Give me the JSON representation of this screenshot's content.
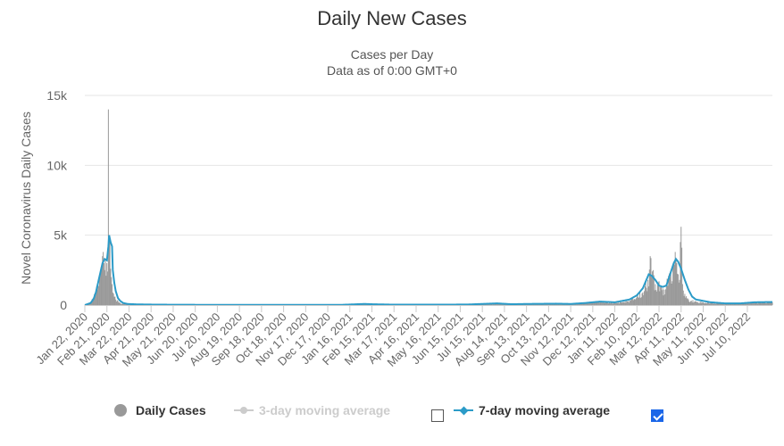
{
  "chart_data": {
    "type": "bar",
    "title": "Daily New Cases",
    "subtitle_lines": [
      "Cases per Day",
      "Data as of 0:00 GMT+0"
    ],
    "ylabel": "Novel Coronavirus Daily Cases",
    "ylim": [
      0,
      15000
    ],
    "y_ticks": [
      0,
      5000,
      10000,
      15000
    ],
    "y_tick_labels": [
      "0",
      "5k",
      "10k",
      "15k"
    ],
    "grid": true,
    "x_tick_labels": [
      "Jan 22, 2020",
      "Feb 21, 2020",
      "Mar 22, 2020",
      "Apr 21, 2020",
      "May 21, 2020",
      "Jun 20, 2020",
      "Jul 20, 2020",
      "Aug 19, 2020",
      "Sep 18, 2020",
      "Oct 18, 2020",
      "Nov 17, 2020",
      "Dec 17, 2020",
      "Jan 16, 2021",
      "Feb 15, 2021",
      "Mar 17, 2021",
      "Apr 16, 2021",
      "May 16, 2021",
      "Jun 15, 2021",
      "Jul 15, 2021",
      "Aug 14, 2021",
      "Sep 13, 2021",
      "Oct 13, 2021",
      "Nov 12, 2021",
      "Dec 12, 2021",
      "Jan 11, 2022",
      "Feb 10, 2022",
      "Mar 12, 2022",
      "Apr 11, 2022",
      "May 11, 2022",
      "Jun 10, 2022",
      "Jul 10, 2022"
    ],
    "total_days": 935,
    "series": [
      {
        "name": "Daily Cases",
        "kind": "bar",
        "color": "#999999",
        "points": [
          [
            0,
            0
          ],
          [
            8,
            200
          ],
          [
            12,
            500
          ],
          [
            15,
            900
          ],
          [
            18,
            1500
          ],
          [
            20,
            2000
          ],
          [
            22,
            2700
          ],
          [
            24,
            3500
          ],
          [
            25,
            3800
          ],
          [
            26,
            3000
          ],
          [
            27,
            2500
          ],
          [
            28,
            3200
          ],
          [
            29,
            2100
          ],
          [
            30,
            3000
          ],
          [
            31,
            2400
          ],
          [
            32,
            14000
          ],
          [
            33,
            5000
          ],
          [
            34,
            4600
          ],
          [
            35,
            2600
          ],
          [
            36,
            2000
          ],
          [
            37,
            1500
          ],
          [
            38,
            900
          ],
          [
            40,
            600
          ],
          [
            42,
            400
          ],
          [
            45,
            300
          ],
          [
            48,
            150
          ],
          [
            52,
            100
          ],
          [
            58,
            50
          ],
          [
            70,
            30
          ],
          [
            100,
            20
          ],
          [
            150,
            15
          ],
          [
            200,
            15
          ],
          [
            250,
            10
          ],
          [
            300,
            10
          ],
          [
            350,
            20
          ],
          [
            370,
            40
          ],
          [
            380,
            60
          ],
          [
            390,
            30
          ],
          [
            420,
            20
          ],
          [
            480,
            30
          ],
          [
            520,
            30
          ],
          [
            540,
            60
          ],
          [
            560,
            100
          ],
          [
            600,
            60
          ],
          [
            640,
            100
          ],
          [
            660,
            60
          ],
          [
            680,
            150
          ],
          [
            690,
            200
          ],
          [
            700,
            250
          ],
          [
            710,
            200
          ],
          [
            720,
            150
          ],
          [
            740,
            300
          ],
          [
            750,
            600
          ],
          [
            760,
            1000
          ],
          [
            765,
            1800
          ],
          [
            768,
            3500
          ],
          [
            770,
            2000
          ],
          [
            772,
            2500
          ],
          [
            775,
            1500
          ],
          [
            780,
            1700
          ],
          [
            785,
            1200
          ],
          [
            790,
            1400
          ],
          [
            795,
            2000
          ],
          [
            800,
            3000
          ],
          [
            802,
            3800
          ],
          [
            804,
            3000
          ],
          [
            806,
            2200
          ],
          [
            808,
            1800
          ],
          [
            810,
            5600
          ],
          [
            812,
            1500
          ],
          [
            815,
            800
          ],
          [
            820,
            400
          ],
          [
            830,
            250
          ],
          [
            850,
            150
          ],
          [
            870,
            100
          ],
          [
            890,
            120
          ],
          [
            910,
            200
          ],
          [
            934,
            200
          ]
        ]
      },
      {
        "name": "3-day moving average",
        "kind": "line",
        "color": "#cccccc",
        "visible": false
      },
      {
        "name": "7-day moving average",
        "kind": "line",
        "color": "#2b9bc8",
        "points": [
          [
            0,
            0
          ],
          [
            8,
            150
          ],
          [
            12,
            450
          ],
          [
            15,
            900
          ],
          [
            18,
            1600
          ],
          [
            21,
            2300
          ],
          [
            24,
            3000
          ],
          [
            27,
            3300
          ],
          [
            30,
            3200
          ],
          [
            32,
            4200
          ],
          [
            33,
            5000
          ],
          [
            35,
            4500
          ],
          [
            37,
            4200
          ],
          [
            38,
            2500
          ],
          [
            40,
            1600
          ],
          [
            42,
            1000
          ],
          [
            45,
            500
          ],
          [
            48,
            300
          ],
          [
            52,
            150
          ],
          [
            58,
            80
          ],
          [
            70,
            50
          ],
          [
            100,
            30
          ],
          [
            150,
            20
          ],
          [
            200,
            20
          ],
          [
            250,
            15
          ],
          [
            300,
            15
          ],
          [
            350,
            20
          ],
          [
            380,
            80
          ],
          [
            390,
            60
          ],
          [
            420,
            30
          ],
          [
            480,
            30
          ],
          [
            520,
            40
          ],
          [
            540,
            80
          ],
          [
            560,
            120
          ],
          [
            580,
            60
          ],
          [
            600,
            80
          ],
          [
            640,
            100
          ],
          [
            660,
            80
          ],
          [
            680,
            150
          ],
          [
            700,
            250
          ],
          [
            720,
            200
          ],
          [
            740,
            400
          ],
          [
            750,
            700
          ],
          [
            758,
            1200
          ],
          [
            762,
            1700
          ],
          [
            766,
            2200
          ],
          [
            770,
            2100
          ],
          [
            775,
            1800
          ],
          [
            780,
            1400
          ],
          [
            785,
            1300
          ],
          [
            790,
            1400
          ],
          [
            795,
            2200
          ],
          [
            800,
            3000
          ],
          [
            803,
            3300
          ],
          [
            806,
            3100
          ],
          [
            810,
            2600
          ],
          [
            815,
            1800
          ],
          [
            820,
            1100
          ],
          [
            825,
            600
          ],
          [
            830,
            400
          ],
          [
            840,
            300
          ],
          [
            850,
            200
          ],
          [
            870,
            120
          ],
          [
            890,
            120
          ],
          [
            910,
            200
          ],
          [
            934,
            220
          ]
        ]
      }
    ],
    "legend": {
      "position": "bottom-center",
      "items": [
        {
          "label": "Daily Cases",
          "enabled": true
        },
        {
          "label": "3-day moving average",
          "enabled": false,
          "checkbox_checked": false
        },
        {
          "label": "7-day moving average",
          "enabled": true,
          "checkbox_checked": true
        }
      ]
    }
  }
}
